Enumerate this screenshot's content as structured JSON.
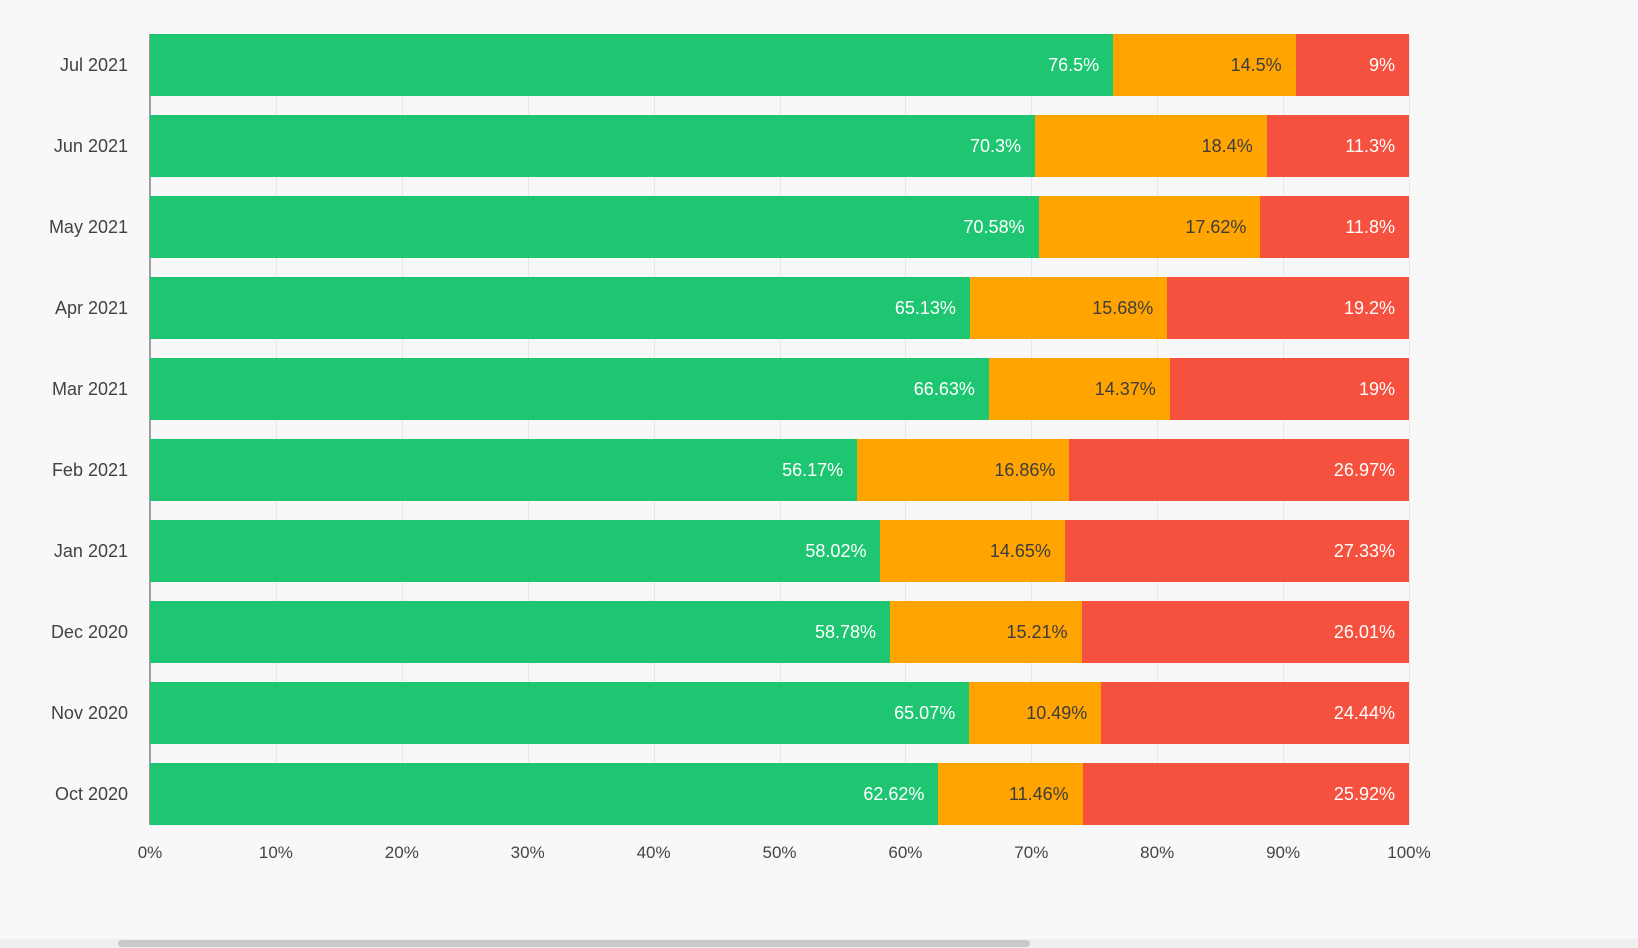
{
  "background": "#f8f8f8",
  "chart_data": {
    "type": "bar",
    "orientation": "horizontal",
    "stacked": true,
    "title": "",
    "xlabel": "",
    "ylabel": "",
    "legend": "none",
    "grid": true,
    "categories": [
      "Jul 2021",
      "Jun 2021",
      "May 2021",
      "Apr 2021",
      "Mar 2021",
      "Feb 2021",
      "Jan 2021",
      "Dec 2020",
      "Nov 2020",
      "Oct 2020"
    ],
    "series": [
      {
        "name": "green",
        "color": "#1ec672",
        "label_color": "#ffffff",
        "values": [
          76.5,
          70.3,
          70.58,
          65.13,
          66.63,
          56.17,
          58.02,
          58.78,
          65.07,
          62.62
        ],
        "labels": [
          "76.5%",
          "70.3%",
          "70.58%",
          "65.13%",
          "66.63%",
          "56.17%",
          "58.02%",
          "58.78%",
          "65.07%",
          "62.62%"
        ]
      },
      {
        "name": "orange",
        "color": "#ffa400",
        "label_color": "#3d3d3d",
        "values": [
          14.5,
          18.4,
          17.62,
          15.68,
          14.37,
          16.86,
          14.65,
          15.21,
          10.49,
          11.46
        ],
        "labels": [
          "14.5%",
          "18.4%",
          "17.62%",
          "15.68%",
          "14.37%",
          "16.86%",
          "14.65%",
          "15.21%",
          "10.49%",
          "11.46%"
        ]
      },
      {
        "name": "red",
        "color": "#f6503e",
        "label_color": "#ffffff",
        "values": [
          9,
          11.3,
          11.8,
          19.2,
          19,
          26.97,
          27.33,
          26.01,
          24.44,
          25.92
        ],
        "labels": [
          "9%",
          "11.3%",
          "11.8%",
          "19.2%",
          "19%",
          "26.97%",
          "27.33%",
          "26.01%",
          "24.44%",
          "25.92%"
        ]
      }
    ],
    "x_axis": {
      "min": 0,
      "max": 100,
      "ticks": [
        "0%",
        "10%",
        "20%",
        "30%",
        "40%",
        "50%",
        "60%",
        "70%",
        "80%",
        "90%",
        "100%"
      ]
    }
  }
}
